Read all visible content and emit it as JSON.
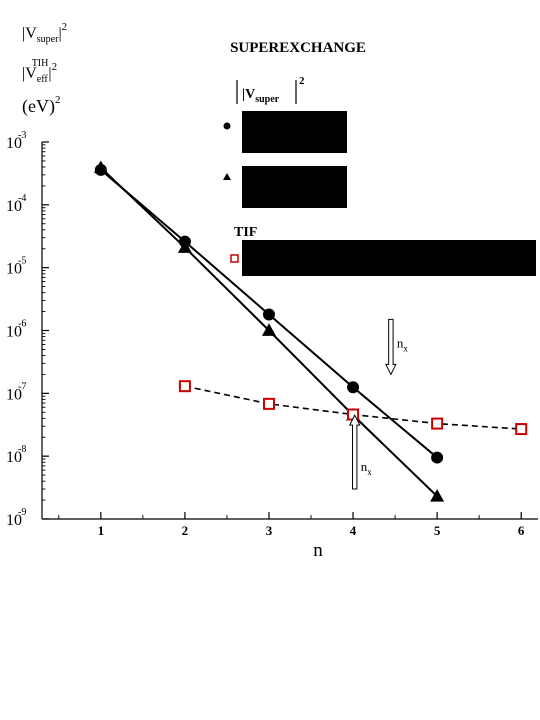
{
  "chart_data": {
    "type": "scatter",
    "title": "SUPEREXCHANGE",
    "xlabel": "n",
    "ylabel": {
      "line1_base": "|V",
      "line1_sub": "super",
      "line1_tail": "|",
      "line1_sup": "2",
      "line2_base": "|V",
      "line2_sub": "eff",
      "line2_supscript": "TIH",
      "line2_tail": "|",
      "line2_sup": "2",
      "line3": "(eV)",
      "line3_sup": "2"
    },
    "y_scale": "log",
    "xlim": [
      0.3,
      6.2
    ],
    "ylim": [
      1e-09,
      0.001
    ],
    "x_ticks": [
      "1",
      "2",
      "3",
      "4",
      "5",
      "6"
    ],
    "y_ticks": [
      {
        "base": "10",
        "exp": "-3",
        "value": 0.001
      },
      {
        "base": "10",
        "exp": "-4",
        "value": 0.0001
      },
      {
        "base": "10",
        "exp": "-5",
        "value": 1e-05
      },
      {
        "base": "10",
        "exp": "-6",
        "value": 1e-06
      },
      {
        "base": "10",
        "exp": "-7",
        "value": 1e-07
      },
      {
        "base": "10",
        "exp": "-8",
        "value": 1e-08
      },
      {
        "base": "10",
        "exp": "-9",
        "value": 1e-09
      }
    ],
    "series": [
      {
        "marker": "circle",
        "color": "#000000",
        "line": "solid",
        "x": [
          1,
          2,
          3,
          4,
          5
        ],
        "y": [
          0.00036,
          2.6e-05,
          1.8e-06,
          1.25e-07,
          9.5e-09
        ]
      },
      {
        "marker": "triangle",
        "color": "#000000",
        "line": "solid",
        "x": [
          1,
          2,
          3,
          4,
          5
        ],
        "y": [
          0.00039,
          2.1e-05,
          1e-06,
          4.5e-08,
          2.3e-09
        ]
      },
      {
        "marker": "open-square",
        "color": "#cc0000",
        "line": "dashed",
        "line_color": "#000000",
        "x": [
          2,
          3,
          4,
          5,
          6
        ],
        "y": [
          1.3e-07,
          6.8e-08,
          4.6e-08,
          3.3e-08,
          2.7e-08
        ]
      }
    ],
    "legend": {
      "header_base": "|V",
      "header_sub": "super",
      "header_tail": "|",
      "header_sup": "2",
      "tif_label": "TIF"
    },
    "annotations": [
      {
        "label_base": "n",
        "label_sub": "x",
        "arrow": "down",
        "x": 4.45,
        "y_from": 1.5e-06,
        "y_to": 2e-07
      },
      {
        "label_base": "n",
        "label_sub": "x",
        "arrow": "up",
        "x": 4.02,
        "y_from": 3e-09,
        "y_to": 4.5e-08
      }
    ]
  }
}
